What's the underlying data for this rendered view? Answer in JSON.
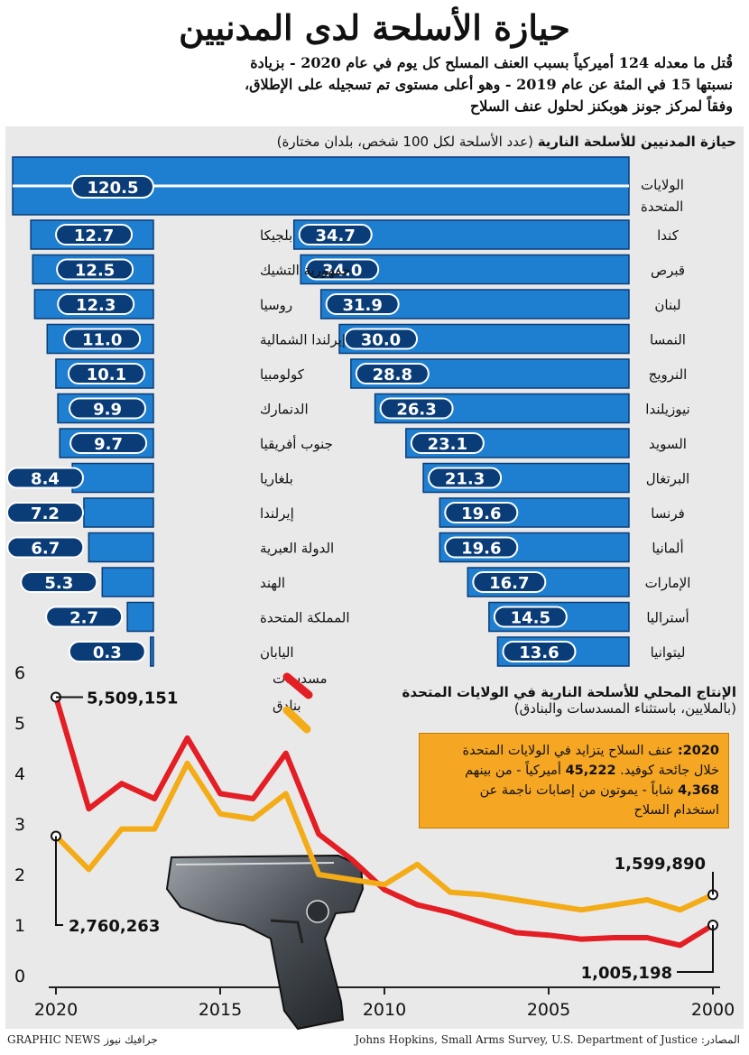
{
  "header": {
    "title": "حيازة الأسلحة لدى المدنيين",
    "subtitle_line1": "قُتل ما معدله 124 أميركياً بسبب العنف المسلح كل يوم في عام 2020 - بزيادة",
    "subtitle_line2": "نسبتها 15 في المئة عن عام 2019 - وهو أعلى مستوى تم تسجيله على الإطلاق،",
    "subtitle_line3": "وفقاً لمركز جونز هوبكنز لحلول عنف السلاح"
  },
  "colors": {
    "bar": "#1e7fd0",
    "bar_dark": "#0a3c78",
    "handguns": "#e31e24",
    "rifles": "#f3ac17",
    "panel": "#e9e9ea"
  },
  "chart_data": [
    {
      "type": "bar",
      "title": "حيازة المدنيين للأسلحة النارية",
      "subtitle": "(عدد الأسلحة لكل 100 شخص، بلدان مختارة)",
      "top_bar": {
        "category": "الولايات المتحدة",
        "value": 120.5,
        "label": "120.5"
      },
      "right_column": [
        {
          "category": "كندا",
          "value": 34.7,
          "label": "34.7"
        },
        {
          "category": "قبرص",
          "value": 34.0,
          "label": "34.0"
        },
        {
          "category": "لبنان",
          "value": 31.9,
          "label": "31.9"
        },
        {
          "category": "النمسا",
          "value": 30.0,
          "label": "30.0"
        },
        {
          "category": "النرويج",
          "value": 28.8,
          "label": "28.8"
        },
        {
          "category": "نيوزيلندا",
          "value": 26.3,
          "label": "26.3"
        },
        {
          "category": "السويد",
          "value": 23.1,
          "label": "23.1"
        },
        {
          "category": "البرتغال",
          "value": 21.3,
          "label": "21.3"
        },
        {
          "category": "فرنسا",
          "value": 19.6,
          "label": "19.6"
        },
        {
          "category": "ألمانيا",
          "value": 19.6,
          "label": "19.6"
        },
        {
          "category": "الإمارات",
          "value": 16.7,
          "label": "16.7"
        },
        {
          "category": "أستراليا",
          "value": 14.5,
          "label": "14.5"
        },
        {
          "category": "ليتوانيا",
          "value": 13.6,
          "label": "13.6"
        }
      ],
      "left_column": [
        {
          "category": "بلجيكا",
          "value": 12.7,
          "label": "12.7"
        },
        {
          "category": "جمهورية التشيك",
          "value": 12.5,
          "label": "12.5"
        },
        {
          "category": "روسيا",
          "value": 12.3,
          "label": "12.3"
        },
        {
          "category": "إيرلندا الشمالية",
          "value": 11.0,
          "label": "11.0"
        },
        {
          "category": "كولومبيا",
          "value": 10.1,
          "label": "10.1"
        },
        {
          "category": "الدنمارك",
          "value": 9.9,
          "label": "9.9"
        },
        {
          "category": "جنوب أفريقيا",
          "value": 9.7,
          "label": "9.7"
        },
        {
          "category": "بلغاريا",
          "value": 8.4,
          "label": "8.4"
        },
        {
          "category": "إيرلندا",
          "value": 7.2,
          "label": "7.2"
        },
        {
          "category": "الدولة العبرية",
          "value": 6.7,
          "label": "6.7"
        },
        {
          "category": "الهند",
          "value": 5.3,
          "label": "5.3"
        },
        {
          "category": "المملكة المتحدة",
          "value": 2.7,
          "label": "2.7"
        },
        {
          "category": "اليابان",
          "value": 0.3,
          "label": "0.3"
        }
      ]
    },
    {
      "type": "line",
      "title": "الإنتاج المحلي للأسلحة النارية في الولايات المتحدة",
      "subtitle": "(بالملايين، باستثناء المسدسات والبنادق)",
      "x": [
        2000,
        2001,
        2002,
        2003,
        2004,
        2005,
        2006,
        2007,
        2008,
        2009,
        2010,
        2011,
        2012,
        2013,
        2014,
        2015,
        2016,
        2017,
        2018,
        2019,
        2020
      ],
      "series": [
        {
          "name": "مسدسات",
          "color": "#e31e24",
          "values": [
            1.0,
            0.6,
            0.75,
            0.75,
            0.72,
            0.8,
            0.85,
            1.05,
            1.25,
            1.4,
            1.7,
            2.3,
            2.8,
            4.4,
            3.5,
            3.6,
            4.7,
            3.5,
            3.8,
            3.3,
            5.51
          ]
        },
        {
          "name": "بنادق",
          "color": "#f3ac17",
          "values": [
            1.6,
            1.3,
            1.5,
            1.4,
            1.3,
            1.4,
            1.5,
            1.6,
            1.65,
            2.2,
            1.8,
            1.9,
            2.0,
            3.6,
            3.1,
            3.2,
            4.2,
            2.9,
            2.9,
            2.1,
            2.76
          ]
        }
      ],
      "yticks": [
        "0",
        "1",
        "2",
        "3",
        "4",
        "5",
        "6"
      ],
      "xticks": [
        "2000",
        "2005",
        "2010",
        "2015",
        "2020"
      ],
      "ylim": [
        0,
        6
      ],
      "annotations": [
        {
          "label": "5,509,151",
          "x": 2020,
          "value": 5.51
        },
        {
          "label": "2,760,263",
          "x": 2020,
          "value": 2.76
        },
        {
          "label": "1,599,890",
          "x": 2000,
          "value": 1.6
        },
        {
          "label": "1,005,198",
          "x": 2000,
          "value": 1.0
        }
      ]
    }
  ],
  "note": {
    "year": "2020:",
    "text1": " عنف السلاح يتزايد في الولايات المتحدة",
    "text2": "خلال جائحة كوفيد. ",
    "num1": "45,222",
    "text3": " أميركياً - من بينهم",
    "num2": "4,368",
    "text4": " شاباً - يموتون من إصابات ناجمة عن",
    "text5": "استخدام السلاح"
  },
  "footer": {
    "sources": "المصادر: Johns Hopkins, Small Arms Survey, U.S. Department of Justice",
    "credit": "GRAPHIC NEWS جرافيك نيوز"
  }
}
